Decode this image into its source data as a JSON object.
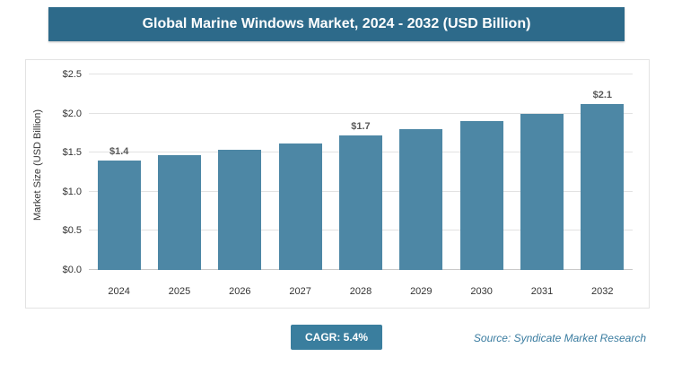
{
  "header": {
    "title": "Global Marine Windows Market, 2024 - 2032 (USD Billion)"
  },
  "chart_data": {
    "type": "bar",
    "title": "Global Marine Windows Market, 2024 - 2032 (USD Billion)",
    "categories": [
      "2024",
      "2025",
      "2026",
      "2027",
      "2028",
      "2029",
      "2030",
      "2031",
      "2032"
    ],
    "values": [
      1.4,
      1.47,
      1.54,
      1.62,
      1.72,
      1.8,
      1.9,
      2.0,
      2.12
    ],
    "data_labels": [
      "$1.4",
      "",
      "",
      "",
      "$1.7",
      "",
      "",
      "",
      "$2.1"
    ],
    "xlabel": "",
    "ylabel": "Market Size (USD Billion)",
    "ylim": [
      0,
      2.5
    ],
    "yticks": [
      "$0.0",
      "$0.5",
      "$1.0",
      "$1.5",
      "$2.0",
      "$2.5"
    ],
    "grid": true,
    "legend": false,
    "bar_color": "#4d87a5"
  },
  "footer": {
    "cagr_label": "CAGR: 5.4%",
    "source": "Source: Syndicate Market Research"
  },
  "colors": {
    "header_bg": "#2d6a8a",
    "bar": "#4d87a5",
    "badge_bg": "#3a7e9e",
    "source_text": "#3a7ca0"
  }
}
